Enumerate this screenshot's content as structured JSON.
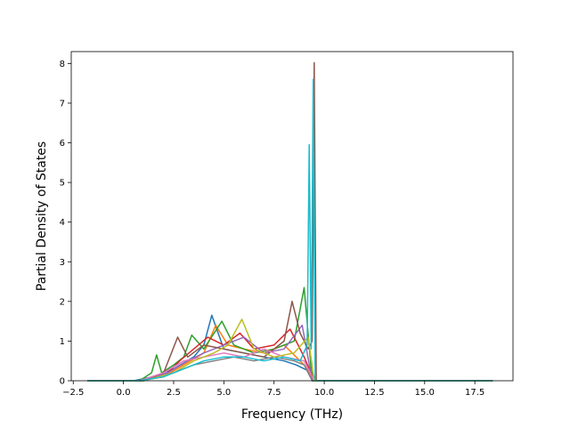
{
  "chart_data": {
    "type": "line",
    "title": "",
    "xlabel": "Frequency (THz)",
    "ylabel": "Partial Density of States",
    "xlim": [
      -2.6,
      19.4
    ],
    "ylim": [
      0,
      8.3
    ],
    "x_ticks": [
      -2.5,
      0.0,
      2.5,
      5.0,
      7.5,
      10.0,
      12.5,
      15.0,
      17.5
    ],
    "x_tick_labels": [
      "−2.5",
      "0.0",
      "2.5",
      "5.0",
      "7.5",
      "10.0",
      "12.5",
      "15.0",
      "17.5"
    ],
    "y_ticks": [
      0,
      1,
      2,
      3,
      4,
      5,
      6,
      7,
      8
    ],
    "y_tick_labels": [
      "0",
      "1",
      "2",
      "3",
      "4",
      "5",
      "6",
      "7",
      "8"
    ],
    "data_x_range": [
      -1.8,
      18.4
    ],
    "grid": false,
    "legend": "none",
    "colors": [
      "#1f77b4",
      "#ff7f0e",
      "#2ca02c",
      "#d62728",
      "#9467bd",
      "#8c564b",
      "#e377c2",
      "#7f7f7f",
      "#bcbd22",
      "#17becf"
    ],
    "series": [
      {
        "color": "#1f77b4",
        "x": [
          -1.8,
          0.5,
          1.5,
          2.5,
          3.5,
          4.0,
          4.4,
          5.0,
          6.0,
          7.0,
          8.0,
          8.6,
          9.0,
          9.4,
          9.6,
          12.0,
          18.4
        ],
        "y": [
          0,
          0,
          0.1,
          0.3,
          0.6,
          0.9,
          1.65,
          0.8,
          0.7,
          0.6,
          0.5,
          0.4,
          0.3,
          0.2,
          0,
          0,
          0
        ]
      },
      {
        "color": "#ff7f0e",
        "x": [
          -1.8,
          0.8,
          2.0,
          3.0,
          4.0,
          4.6,
          5.2,
          6.0,
          7.0,
          8.0,
          9.0,
          9.5,
          12.0,
          18.4
        ],
        "y": [
          0,
          0,
          0.1,
          0.4,
          0.7,
          1.4,
          0.9,
          0.8,
          0.7,
          0.9,
          0.4,
          0,
          0,
          0
        ]
      },
      {
        "color": "#2ca02c",
        "x": [
          -1.8,
          0.8,
          1.4,
          1.65,
          1.9,
          2.5,
          3.0,
          3.4,
          4.0,
          4.9,
          5.5,
          6.5,
          7.5,
          8.5,
          9.0,
          9.4,
          12.0,
          18.4
        ],
        "y": [
          0,
          0,
          0.2,
          0.65,
          0.2,
          0.4,
          0.6,
          1.15,
          0.8,
          1.5,
          0.9,
          0.7,
          0.8,
          1.0,
          2.35,
          0,
          0,
          0
        ]
      },
      {
        "color": "#d62728",
        "x": [
          -1.8,
          0.8,
          2.0,
          2.8,
          3.5,
          4.2,
          5.0,
          5.8,
          6.5,
          7.5,
          8.3,
          9.0,
          9.5,
          12.0,
          18.4
        ],
        "y": [
          0,
          0,
          0.1,
          0.5,
          0.8,
          1.1,
          0.9,
          1.2,
          0.8,
          0.9,
          1.3,
          0.6,
          0,
          0,
          0
        ]
      },
      {
        "color": "#9467bd",
        "x": [
          -1.8,
          1.0,
          2.2,
          3.2,
          4.0,
          5.0,
          6.0,
          7.0,
          8.0,
          8.9,
          9.4,
          12.0,
          18.4
        ],
        "y": [
          0,
          0,
          0.2,
          0.5,
          0.7,
          0.9,
          1.1,
          0.7,
          0.8,
          1.4,
          0,
          0,
          0
        ]
      },
      {
        "color": "#8c564b",
        "x": [
          -1.8,
          1.0,
          2.0,
          2.7,
          3.2,
          4.0,
          5.0,
          6.0,
          7.0,
          8.0,
          8.4,
          8.8,
          9.2,
          9.4,
          9.5,
          9.6,
          12.0,
          18.4
        ],
        "y": [
          0,
          0,
          0.2,
          1.1,
          0.6,
          0.9,
          0.8,
          0.7,
          0.6,
          1.0,
          2.0,
          1.2,
          0.8,
          1.0,
          8.02,
          0,
          0,
          0
        ]
      },
      {
        "color": "#e377c2",
        "x": [
          -1.8,
          0.8,
          2.0,
          3.0,
          4.0,
          5.0,
          6.0,
          7.0,
          8.0,
          9.0,
          9.5,
          12.0,
          18.4
        ],
        "y": [
          0,
          0,
          0.2,
          0.5,
          0.6,
          0.7,
          0.6,
          0.8,
          0.6,
          0.5,
          0,
          0,
          0
        ]
      },
      {
        "color": "#7f7f7f",
        "x": [
          -1.8,
          1.0,
          2.5,
          3.5,
          4.5,
          5.5,
          6.5,
          7.5,
          8.5,
          9.0,
          9.4,
          12.0,
          18.4
        ],
        "y": [
          0,
          0,
          0.2,
          0.4,
          0.5,
          0.6,
          0.5,
          0.6,
          0.5,
          0.4,
          0,
          0,
          0
        ]
      },
      {
        "color": "#bcbd22",
        "x": [
          -1.8,
          1.0,
          2.5,
          3.5,
          4.5,
          5.2,
          5.9,
          6.5,
          7.5,
          8.5,
          9.2,
          9.5,
          12.0,
          18.4
        ],
        "y": [
          0,
          0,
          0.2,
          0.5,
          0.7,
          0.9,
          1.55,
          0.8,
          0.6,
          0.7,
          1.1,
          0,
          0,
          0
        ]
      },
      {
        "color": "#17becf",
        "x": [
          -1.8,
          0.8,
          2.0,
          3.0,
          4.0,
          5.0,
          6.0,
          7.0,
          8.0,
          8.8,
          9.15,
          9.25,
          9.35,
          9.45,
          9.55,
          12.0,
          18.4
        ],
        "y": [
          0,
          0,
          0.1,
          0.3,
          0.5,
          0.6,
          0.6,
          0.5,
          0.6,
          0.5,
          0.9,
          5.95,
          0.8,
          7.6,
          0,
          0,
          0
        ]
      }
    ]
  }
}
